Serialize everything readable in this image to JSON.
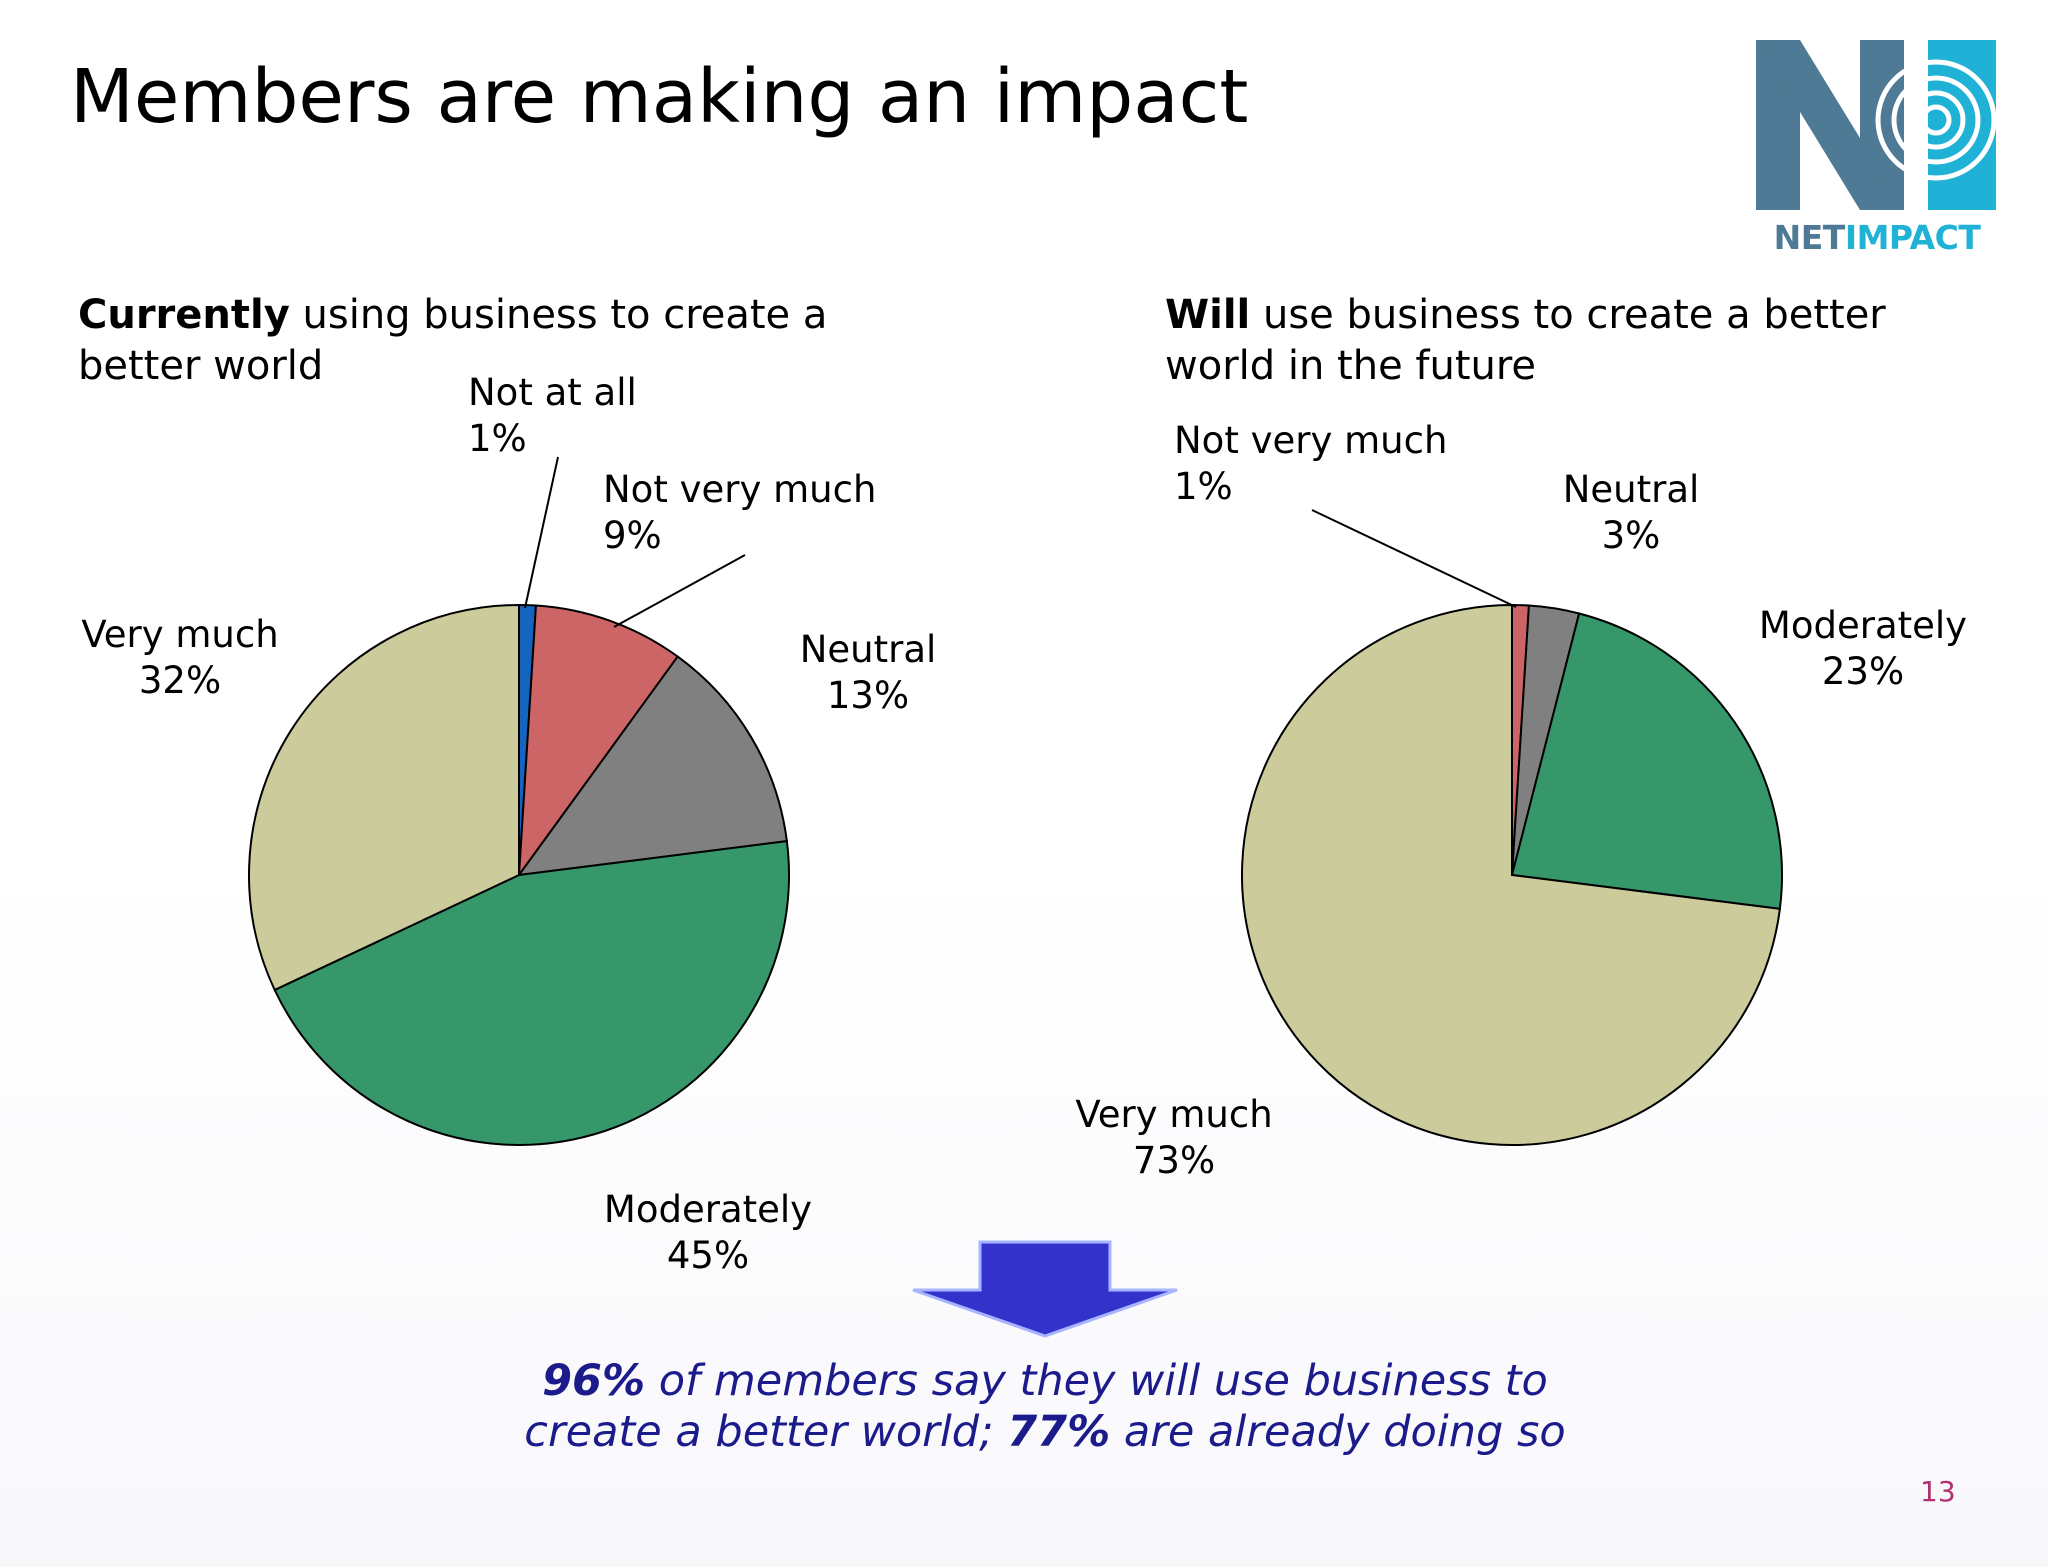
{
  "slide": {
    "title": "Members are making an impact",
    "page_number": "13"
  },
  "logo": {
    "word1": "NET",
    "word2": "IMPACT",
    "colors": {
      "steel": "#4e7a95",
      "cyan": "#1fb1d6"
    }
  },
  "conclusion": {
    "pct1": "96%",
    "text1": " of members say they will use business to",
    "text2": "create a better world; ",
    "pct2": "77%",
    "text3": " are already doing so"
  },
  "colors": {
    "Not at all": "#1565c0",
    "Not very much": "#cd6566",
    "Neutral": "#808080",
    "Moderately": "#35976a",
    "Very much": "#cccb9c",
    "arrow": "#3333cc",
    "conclusion_text": "#1b1b8c"
  },
  "chart_data": [
    {
      "type": "pie",
      "title_bold": "Currently",
      "title_rest": " using business to create a better world",
      "slices": [
        {
          "label": "Not at all",
          "value": 1,
          "value_label": "1%"
        },
        {
          "label": "Not very much",
          "value": 9,
          "value_label": "9%"
        },
        {
          "label": "Neutral",
          "value": 13,
          "value_label": "13%"
        },
        {
          "label": "Moderately",
          "value": 45,
          "value_label": "45%"
        },
        {
          "label": "Very much",
          "value": 32,
          "value_label": "32%"
        }
      ]
    },
    {
      "type": "pie",
      "title_bold": "Will",
      "title_rest": " use business to create a better world in the future",
      "slices": [
        {
          "label": "Not very much",
          "value": 1,
          "value_label": "1%"
        },
        {
          "label": "Neutral",
          "value": 3,
          "value_label": "3%"
        },
        {
          "label": "Moderately",
          "value": 23,
          "value_label": "23%"
        },
        {
          "label": "Very much",
          "value": 73,
          "value_label": "73%"
        }
      ]
    }
  ]
}
